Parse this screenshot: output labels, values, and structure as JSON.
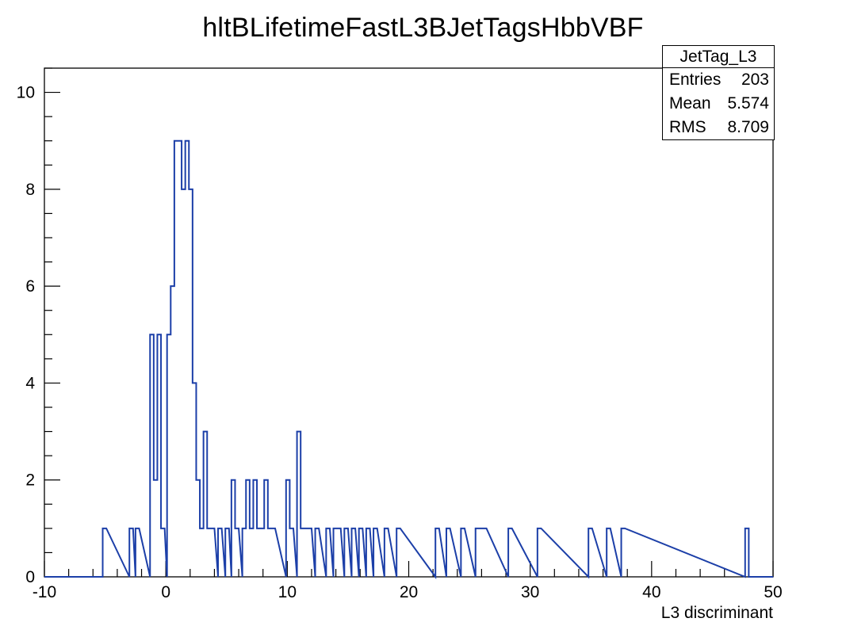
{
  "title": "hltBLifetimeFastL3BJetTagsHbbVBF",
  "stats": {
    "name": "JetTag_L3",
    "rows": [
      {
        "label": "Entries",
        "value": "203"
      },
      {
        "label": "Mean",
        "value": "5.574"
      },
      {
        "label": "RMS",
        "value": "8.709"
      }
    ]
  },
  "chart_data": {
    "type": "histogram",
    "title": "hltBLifetimeFastL3BJetTagsHbbVBF",
    "xlabel": "L3 discriminant",
    "ylabel": "",
    "xlim": [
      -10,
      50
    ],
    "ylim": [
      0,
      10.5
    ],
    "x_ticks": [
      -10,
      0,
      10,
      20,
      30,
      40,
      50
    ],
    "y_ticks": [
      0,
      2,
      4,
      6,
      8,
      10
    ],
    "line_color": "#1c3fa8",
    "bin_width": 0.3,
    "bins": [
      [
        -5.2,
        1
      ],
      [
        -3.0,
        1
      ],
      [
        -2.5,
        1
      ],
      [
        -1.3,
        5
      ],
      [
        -1.0,
        2
      ],
      [
        -0.7,
        5
      ],
      [
        -0.4,
        1
      ],
      [
        0.1,
        5
      ],
      [
        0.4,
        6
      ],
      [
        0.7,
        9
      ],
      [
        1.0,
        9
      ],
      [
        1.3,
        8
      ],
      [
        1.6,
        9
      ],
      [
        1.9,
        8
      ],
      [
        2.2,
        4
      ],
      [
        2.5,
        2
      ],
      [
        2.8,
        1
      ],
      [
        3.1,
        3
      ],
      [
        3.4,
        1
      ],
      [
        3.7,
        1
      ],
      [
        4.3,
        1
      ],
      [
        4.9,
        1
      ],
      [
        5.4,
        2
      ],
      [
        5.7,
        1
      ],
      [
        6.3,
        1
      ],
      [
        6.6,
        2
      ],
      [
        6.9,
        1
      ],
      [
        7.2,
        2
      ],
      [
        7.5,
        1
      ],
      [
        7.8,
        1
      ],
      [
        8.1,
        2
      ],
      [
        8.4,
        1
      ],
      [
        8.7,
        1
      ],
      [
        9.9,
        2
      ],
      [
        10.2,
        1
      ],
      [
        10.8,
        3
      ],
      [
        11.1,
        1
      ],
      [
        11.4,
        1
      ],
      [
        11.7,
        1
      ],
      [
        12.3,
        1
      ],
      [
        13.2,
        1
      ],
      [
        13.8,
        1
      ],
      [
        14.1,
        1
      ],
      [
        14.7,
        1
      ],
      [
        15.3,
        1
      ],
      [
        15.9,
        1
      ],
      [
        16.5,
        1
      ],
      [
        17.1,
        1
      ],
      [
        18.0,
        1
      ],
      [
        19.0,
        1
      ],
      [
        22.2,
        1
      ],
      [
        23.1,
        1
      ],
      [
        24.3,
        1
      ],
      [
        25.5,
        1
      ],
      [
        25.8,
        1
      ],
      [
        26.1,
        1
      ],
      [
        28.2,
        1
      ],
      [
        30.6,
        1
      ],
      [
        34.8,
        1
      ],
      [
        36.3,
        1
      ],
      [
        37.5,
        1
      ],
      [
        47.7,
        1
      ]
    ]
  }
}
